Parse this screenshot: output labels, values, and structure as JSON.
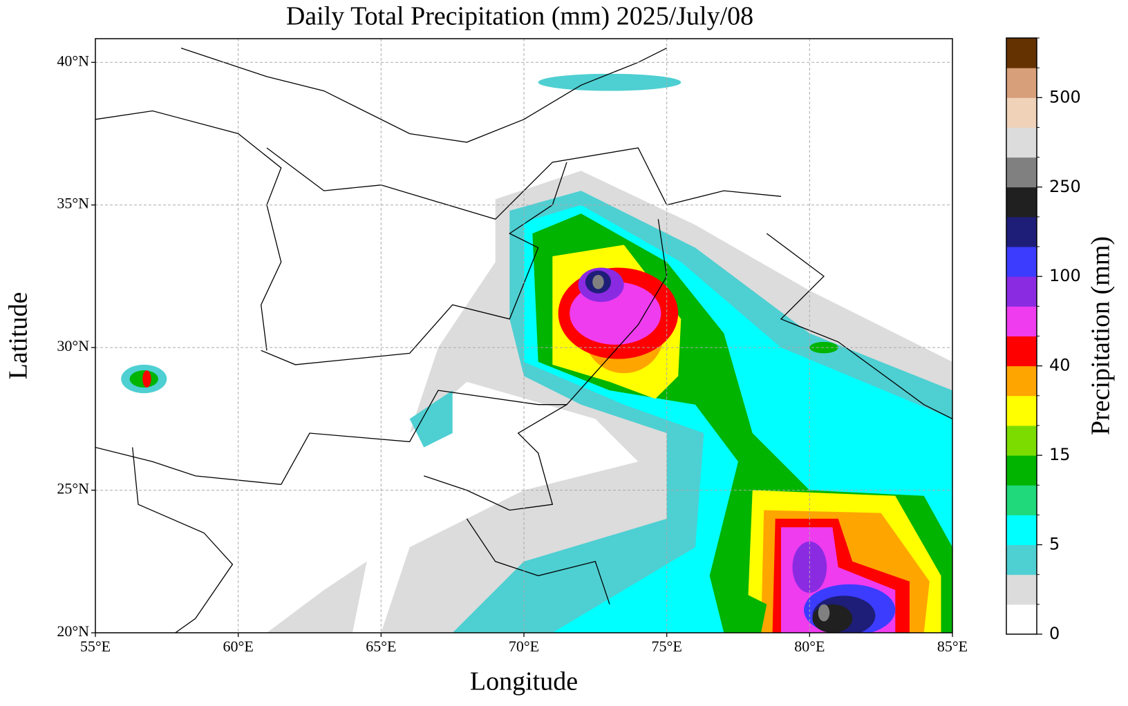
{
  "chart_data": {
    "type": "contour-map",
    "title": "Daily Total Precipitation (mm)  2025/July/08",
    "x_label": "Longitude",
    "y_label": "Latitude",
    "xlim": [
      55,
      85
    ],
    "ylim": [
      20,
      40.83
    ],
    "xticks": [
      {
        "value": 55,
        "label": "55°E"
      },
      {
        "value": 60,
        "label": "60°E"
      },
      {
        "value": 65,
        "label": "65°E"
      },
      {
        "value": 70,
        "label": "70°E"
      },
      {
        "value": 75,
        "label": "75°E"
      },
      {
        "value": 80,
        "label": "80°E"
      },
      {
        "value": 85,
        "label": "85°E"
      }
    ],
    "yticks": [
      {
        "value": 20,
        "label": "20°N"
      },
      {
        "value": 25,
        "label": "25°N"
      },
      {
        "value": 30,
        "label": "30°N"
      },
      {
        "value": 35,
        "label": "35°N"
      },
      {
        "value": 40,
        "label": "40°N"
      }
    ],
    "grid": true,
    "colorbar": {
      "label": "Precipitation (mm)",
      "colors": [
        "#ffffff",
        "#dcdcdc",
        "#4ecfd2",
        "#00ffff",
        "#1fd97a",
        "#00b400",
        "#7cdc00",
        "#ffff00",
        "#ffa500",
        "#ff0000",
        "#ee3cee",
        "#8a2be2",
        "#3c3cff",
        "#1e1e78",
        "#202020",
        "#808080",
        "#dcdcdc",
        "#f0d2b9",
        "#d7a07a",
        "#643200"
      ],
      "boundaries": [
        0,
        null,
        null,
        5,
        null,
        null,
        15,
        null,
        null,
        40,
        null,
        null,
        100,
        null,
        null,
        250,
        null,
        null,
        500,
        null,
        null
      ]
    }
  }
}
